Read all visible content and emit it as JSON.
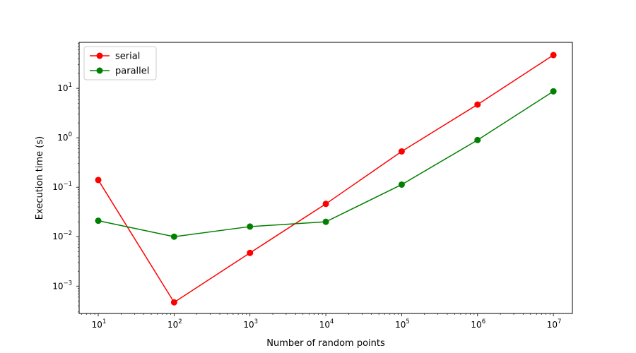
{
  "chart_data": {
    "type": "line",
    "title": "",
    "xlabel": "Number of random points",
    "ylabel": "Execution time (s)",
    "xscale": "log",
    "yscale": "log",
    "xlim": [
      5.6,
      17800000
    ],
    "ylim": [
      0.00028,
      85
    ],
    "x": [
      10,
      100,
      1000,
      10000,
      100000,
      1000000,
      10000000
    ],
    "x_tick_labels": [
      {
        "value": 10,
        "base": "10",
        "exp": "1"
      },
      {
        "value": 100,
        "base": "10",
        "exp": "2"
      },
      {
        "value": 1000,
        "base": "10",
        "exp": "3"
      },
      {
        "value": 10000,
        "base": "10",
        "exp": "4"
      },
      {
        "value": 100000,
        "base": "10",
        "exp": "5"
      },
      {
        "value": 1000000,
        "base": "10",
        "exp": "6"
      },
      {
        "value": 10000000,
        "base": "10",
        "exp": "7"
      }
    ],
    "y_tick_labels": [
      {
        "value": 0.001,
        "base": "10",
        "exp": "−3"
      },
      {
        "value": 0.01,
        "base": "10",
        "exp": "−2"
      },
      {
        "value": 0.1,
        "base": "10",
        "exp": "−1"
      },
      {
        "value": 1,
        "base": "10",
        "exp": "0"
      },
      {
        "value": 10,
        "base": "10",
        "exp": "1"
      }
    ],
    "series": [
      {
        "name": "serial",
        "color": "#ff0000",
        "values": [
          0.14,
          0.00047,
          0.0047,
          0.046,
          0.53,
          4.7,
          47
        ]
      },
      {
        "name": "parallel",
        "color": "#008000",
        "values": [
          0.021,
          0.01,
          0.016,
          0.02,
          0.113,
          0.9,
          8.7
        ]
      }
    ],
    "legend_position": "top-left",
    "grid": false
  }
}
